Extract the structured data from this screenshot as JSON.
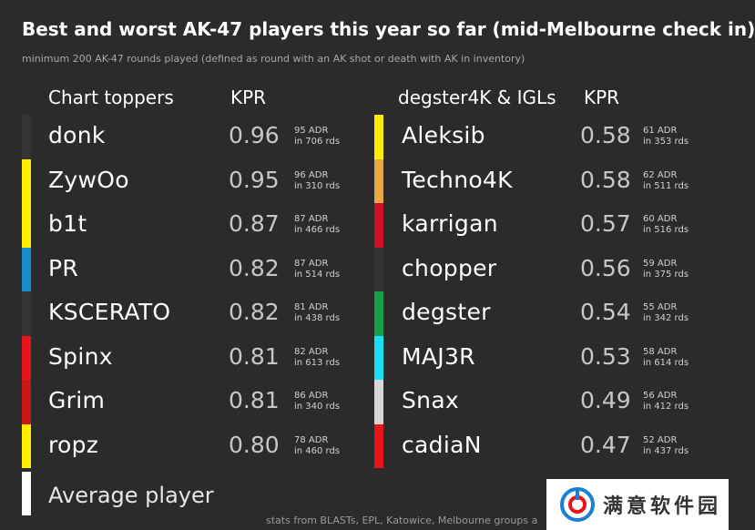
{
  "title": "Best and worst AK-47 players this year so far (mid-Melbourne check in)",
  "subtitle": "minimum 200 AK-47 rounds played (defined as round with an AK shot or death with AK in inventory)",
  "footer": "stats from BLASTs, EPL, Katowice, Melbourne groups a",
  "watermark": "满意软件园",
  "colors": {
    "background": "#2b2b2b"
  },
  "chart_data": {
    "type": "table",
    "groups": [
      {
        "heading": "Chart toppers",
        "metric_heading": "KPR",
        "rows": [
          {
            "player": "donk",
            "color": "#333338",
            "kpr": "0.96",
            "adr_label": "95 ADR",
            "rounds_label": "in 706 rds"
          },
          {
            "player": "ZywOo",
            "color": "#ffee00",
            "kpr": "0.95",
            "adr_label": "96 ADR",
            "rounds_label": "in 310 rds"
          },
          {
            "player": "b1t",
            "color": "#ffee00",
            "kpr": "0.87",
            "adr_label": "87 ADR",
            "rounds_label": "in 466 rds"
          },
          {
            "player": "PR",
            "color": "#1a8cd0",
            "kpr": "0.82",
            "adr_label": "87 ADR",
            "rounds_label": "in 514 rds"
          },
          {
            "player": "KSCERATO",
            "color": "#333338",
            "kpr": "0.82",
            "adr_label": "81 ADR",
            "rounds_label": "in 438 rds"
          },
          {
            "player": "Spinx",
            "color": "#e8141a",
            "kpr": "0.81",
            "adr_label": "82 ADR",
            "rounds_label": "in 613 rds"
          },
          {
            "player": "Grim",
            "color": "#c71818",
            "kpr": "0.81",
            "adr_label": "86 ADR",
            "rounds_label": "in 340 rds"
          },
          {
            "player": "ropz",
            "color": "#ffee00",
            "kpr": "0.80",
            "adr_label": "78 ADR",
            "rounds_label": "in 460 rds"
          }
        ]
      },
      {
        "heading": "degster4K & IGLs",
        "metric_heading": "KPR",
        "rows": [
          {
            "player": "Aleksib",
            "color": "#ffee00",
            "kpr": "0.58",
            "adr_label": "61 ADR",
            "rounds_label": "in 353 rds"
          },
          {
            "player": "Techno4K",
            "color": "#e8a948",
            "kpr": "0.58",
            "adr_label": "62 ADR",
            "rounds_label": "in 511 rds"
          },
          {
            "player": "karrigan",
            "color": "#d0102a",
            "kpr": "0.57",
            "adr_label": "60 ADR",
            "rounds_label": "in 516 rds"
          },
          {
            "player": "chopper",
            "color": "#333338",
            "kpr": "0.56",
            "adr_label": "59 ADR",
            "rounds_label": "in 375 rds"
          },
          {
            "player": "degster",
            "color": "#12a04a",
            "kpr": "0.54",
            "adr_label": "55 ADR",
            "rounds_label": "in 342 rds"
          },
          {
            "player": "MAJ3R",
            "color": "#18e0f0",
            "kpr": "0.53",
            "adr_label": "58 ADR",
            "rounds_label": "in 614 rds"
          },
          {
            "player": "Snax",
            "color": "#d8d8d8",
            "kpr": "0.49",
            "adr_label": "56 ADR",
            "rounds_label": "in 412 rds"
          },
          {
            "player": "cadiaN",
            "color": "#e8141a",
            "kpr": "0.47",
            "adr_label": "52 ADR",
            "rounds_label": "in 437 rds"
          }
        ]
      }
    ],
    "average": {
      "label": "Average player",
      "color": "#ffffff"
    }
  }
}
